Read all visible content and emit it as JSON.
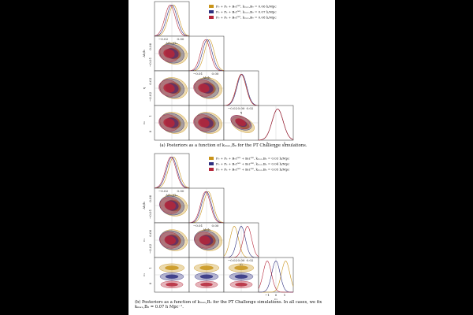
{
  "colors": {
    "gold": "#c9941a",
    "navy": "#2e2f7f",
    "red": "#b5273a",
    "background": "#000000",
    "paper": "#ffffff"
  },
  "figure_a": {
    "legend": [
      "P₀ + P₂ + B₀ᴛᴺᴷ, kₘₐₓ,B₀ = 0.06 h/Mpc",
      "P₀ + P₂ + B₀ᴛᴺᴷ, kₘₐₓ,B₀ = 0.07 h/Mpc",
      "P₀ + P₂ + B₀ᴛᴺᴷ, kₘₐₓ,B₀ = 0.08 h/Mpc"
    ],
    "row_labels": [
      "Δh/h",
      "η",
      "c₀"
    ],
    "col_labels": [
      "ΔΩₘ/Ωₘ",
      "Δh/h",
      "η",
      "c₀"
    ],
    "ticks": {
      "col0": [
        "−0.02",
        "0.00"
      ],
      "col1": [
        "−0.01",
        "0.00"
      ],
      "col2": [
        "−0.02",
        "0.00",
        "0.02"
      ],
      "col3": [
        "0",
        "1"
      ],
      "row_hh": [
        "0.00",
        "−0.01"
      ],
      "row_eta": [
        "0.02",
        "−0.02"
      ],
      "row_c0": [
        "1",
        "0"
      ]
    },
    "caption": "(a) Posteriors as a function of kₘₐₓ,B₀ for the PT Challenge simulations."
  },
  "figure_b": {
    "legend": [
      "P₀ + P₂ + B₀ᴛᴺᴷ + B₂ᴛᴺᴷ, kₘₐₓ,B₂ = 0.03 h/Mpc",
      "P₀ + P₂ + B₀ᴛᴺᴷ + B₂ᴛᴺᴷ, kₘₐₓ,B₂ = 0.04 h/Mpc",
      "P₀ + P₂ + B₀ᴛᴺᴷ + B₂ᴛᴺᴷ, kₘₐₓ,B₂ = 0.05 h/Mpc"
    ],
    "row_labels": [
      "Δh/h",
      "c₁",
      "c₂"
    ],
    "col_labels": [
      "ΔΩₘ/Ωₘ",
      "Δh/h",
      "c₁",
      "c₂"
    ],
    "ticks": {
      "col0": [
        "−0.02",
        "0.00"
      ],
      "col1": [
        "−0.01",
        "0.00"
      ],
      "col2": [
        "−0.02",
        "0.00",
        "0.02"
      ],
      "col3": [
        "−1",
        "0",
        "1"
      ],
      "row_hh": [
        "0.00",
        "−0.01"
      ],
      "row_c1": [
        "0.00",
        "−0.02"
      ],
      "row_c2": [
        "1",
        "0"
      ]
    },
    "caption_line1": "(b) Posteriors as a function of kₘₐₓ,B₂ for the PT Challenge simulations. In all cases, we fix",
    "caption_line2": "kₘₐₓ,B₀ = 0.07 h Mpc⁻¹."
  }
}
